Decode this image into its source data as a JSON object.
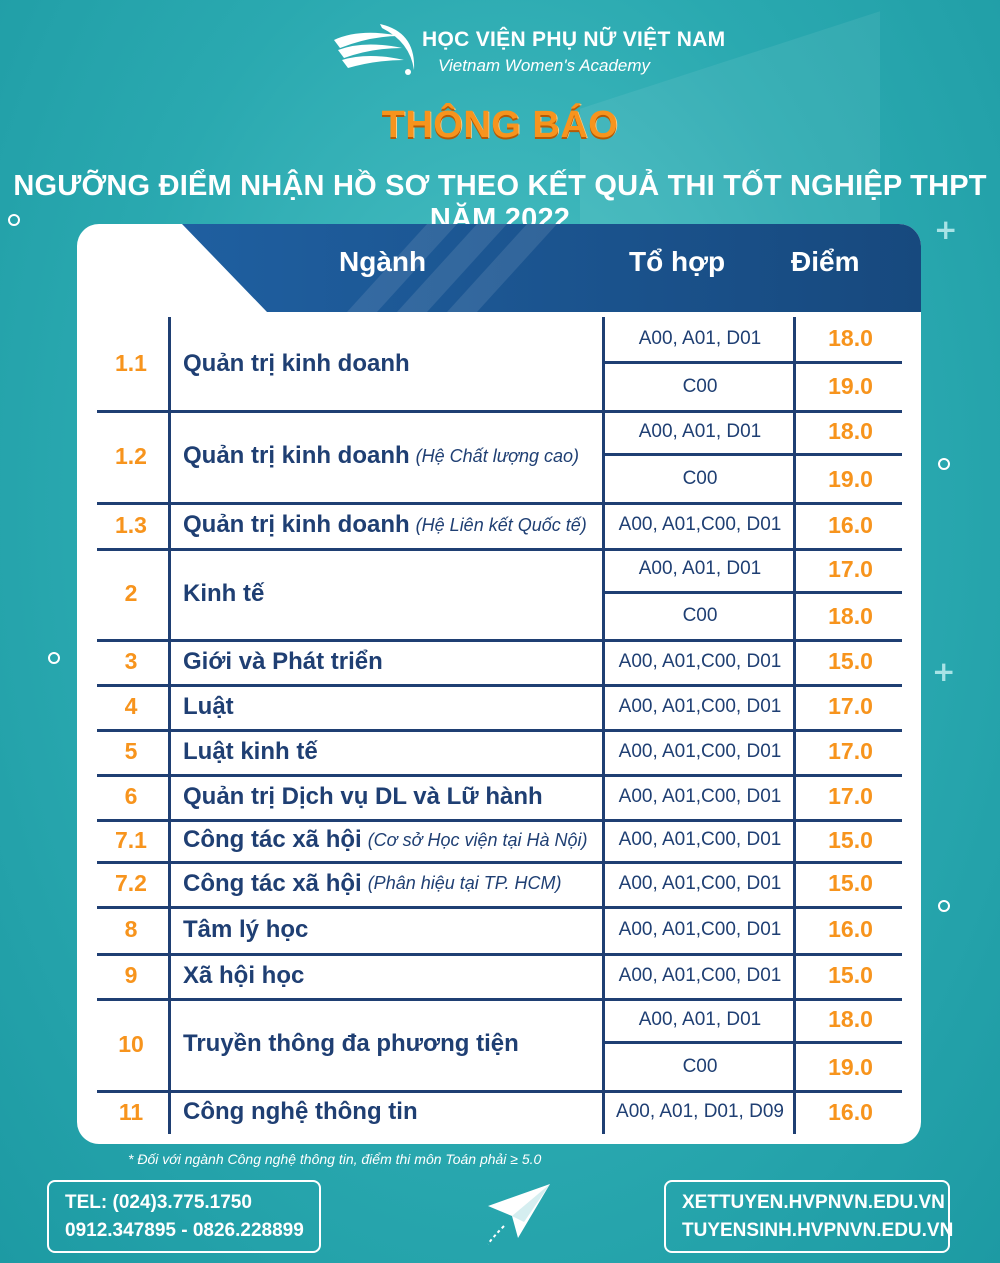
{
  "header": {
    "institution_name": "HỌC VIỆN PHỤ NỮ VIỆT NAM",
    "institution_name_en": "Vietnam Women's Academy",
    "logo_arc_text": "HỌC VIỆN PHỤ NỮ VIỆT NAM",
    "notice_title": "THÔNG BÁO",
    "subtitle": "NGƯỠNG ĐIỂM NHẬN HỒ SƠ THEO KẾT QUẢ THI TỐT NGHIỆP THPT NĂM 2022"
  },
  "table": {
    "columns": {
      "major": "Ngành",
      "combination": "Tổ hợp",
      "score": "Điểm"
    },
    "rows": [
      {
        "no": "1.1",
        "major": "Quản trị kinh doanh",
        "note": "",
        "subs": [
          {
            "combo": "A00, A01, D01",
            "score": "18.0"
          },
          {
            "combo": "C00",
            "score": "19.0"
          }
        ]
      },
      {
        "no": "1.2",
        "major": "Quản trị kinh doanh",
        "note": "(Hệ Chất lượng cao)",
        "subs": [
          {
            "combo": "A00, A01, D01",
            "score": "18.0"
          },
          {
            "combo": "C00",
            "score": "19.0"
          }
        ]
      },
      {
        "no": "1.3",
        "major": "Quản trị kinh doanh",
        "note": "(Hệ Liên kết Quốc tế)",
        "subs": [
          {
            "combo": "A00, A01,C00, D01",
            "score": "16.0"
          }
        ]
      },
      {
        "no": "2",
        "major": "Kinh tế",
        "note": "",
        "subs": [
          {
            "combo": "A00, A01, D01",
            "score": "17.0"
          },
          {
            "combo": "C00",
            "score": "18.0"
          }
        ]
      },
      {
        "no": "3",
        "major": "Giới và Phát triển",
        "note": "",
        "subs": [
          {
            "combo": "A00, A01,C00, D01",
            "score": "15.0"
          }
        ]
      },
      {
        "no": "4",
        "major": "Luật",
        "note": "",
        "subs": [
          {
            "combo": "A00, A01,C00, D01",
            "score": "17.0"
          }
        ]
      },
      {
        "no": "5",
        "major": "Luật kinh tế",
        "note": "",
        "subs": [
          {
            "combo": "A00, A01,C00, D01",
            "score": "17.0"
          }
        ]
      },
      {
        "no": "6",
        "major": "Quản trị Dịch vụ DL và Lữ hành",
        "note": "",
        "subs": [
          {
            "combo": "A00, A01,C00, D01",
            "score": "17.0"
          }
        ]
      },
      {
        "no": "7.1",
        "major": "Công tác xã hội",
        "note": "(Cơ sở Học viện tại Hà Nội)",
        "subs": [
          {
            "combo": "A00, A01,C00, D01",
            "score": "15.0"
          }
        ]
      },
      {
        "no": "7.2",
        "major": "Công tác xã hội",
        "note": "(Phân hiệu tại TP. HCM)",
        "subs": [
          {
            "combo": "A00, A01,C00, D01",
            "score": "15.0"
          }
        ]
      },
      {
        "no": "8",
        "major": "Tâm lý học",
        "note": "",
        "subs": [
          {
            "combo": "A00, A01,C00, D01",
            "score": "16.0"
          }
        ]
      },
      {
        "no": "9",
        "major": "Xã hội học",
        "note": "",
        "subs": [
          {
            "combo": "A00, A01,C00, D01",
            "score": "15.0"
          }
        ]
      },
      {
        "no": "10",
        "major": "Truyền thông đa phương tiện",
        "note": "",
        "subs": [
          {
            "combo": "A00, A01, D01",
            "score": "18.0"
          },
          {
            "combo": "C00",
            "score": "19.0"
          }
        ]
      },
      {
        "no": "11",
        "major": "Công nghệ thông tin",
        "note": "",
        "subs": [
          {
            "combo": "A00, A01, D01, D09",
            "score": "16.0"
          }
        ]
      }
    ]
  },
  "footnote": "* Đối với ngành Công nghệ thông tin, điểm thi môn Toán phải ≥ 5.0",
  "contact": {
    "phone_line1": "TEL: (024)3.775.1750",
    "phone_line2": "0912.347895 - 0826.228899",
    "web_line1": "XETTUYEN.HVPNVN.EDU.VN",
    "web_line2": "TUYENSINH.HVPNVN.EDU.VN"
  },
  "colors": {
    "accent_orange": "#f7941d",
    "navy": "#1f3f73",
    "header_blue": "#1b5c95",
    "background_teal": "#2aa9b0"
  },
  "icons": {
    "logo": "bird-wing-logo",
    "decor": "paper-plane-icon"
  }
}
